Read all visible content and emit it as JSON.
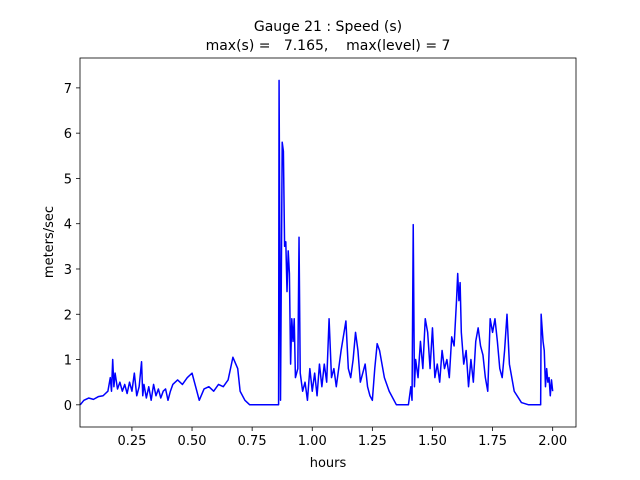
{
  "chart_data": {
    "type": "line",
    "title": "Gauge 21 : Speed (s)",
    "subtitle": "max(s) =   7.165,    max(level) = 7",
    "xlabel": "hours",
    "ylabel": "meters/sec",
    "color": "#0000ff",
    "x": [
      0.035,
      0.05,
      0.07,
      0.09,
      0.11,
      0.13,
      0.15,
      0.16,
      0.165,
      0.17,
      0.175,
      0.18,
      0.19,
      0.2,
      0.21,
      0.22,
      0.23,
      0.24,
      0.25,
      0.26,
      0.27,
      0.28,
      0.29,
      0.295,
      0.3,
      0.31,
      0.32,
      0.33,
      0.34,
      0.35,
      0.36,
      0.37,
      0.38,
      0.39,
      0.4,
      0.41,
      0.42,
      0.44,
      0.46,
      0.48,
      0.5,
      0.52,
      0.53,
      0.55,
      0.57,
      0.59,
      0.61,
      0.63,
      0.65,
      0.67,
      0.69,
      0.7,
      0.72,
      0.74,
      0.86,
      0.862,
      0.868,
      0.875,
      0.88,
      0.885,
      0.89,
      0.895,
      0.9,
      0.905,
      0.91,
      0.915,
      0.92,
      0.925,
      0.93,
      0.94,
      0.945,
      0.95,
      0.96,
      0.97,
      0.98,
      0.99,
      1.0,
      1.01,
      1.02,
      1.03,
      1.04,
      1.05,
      1.06,
      1.07,
      1.08,
      1.09,
      1.1,
      1.12,
      1.14,
      1.15,
      1.16,
      1.17,
      1.18,
      1.19,
      1.2,
      1.22,
      1.23,
      1.24,
      1.25,
      1.26,
      1.27,
      1.28,
      1.29,
      1.3,
      1.32,
      1.35,
      1.4,
      1.41,
      1.415,
      1.42,
      1.425,
      1.43,
      1.44,
      1.45,
      1.46,
      1.47,
      1.48,
      1.49,
      1.5,
      1.51,
      1.52,
      1.53,
      1.54,
      1.55,
      1.56,
      1.57,
      1.58,
      1.59,
      1.6,
      1.605,
      1.61,
      1.615,
      1.62,
      1.63,
      1.64,
      1.65,
      1.66,
      1.67,
      1.68,
      1.69,
      1.7,
      1.71,
      1.72,
      1.73,
      1.74,
      1.75,
      1.76,
      1.77,
      1.78,
      1.79,
      1.8,
      1.81,
      1.82,
      1.84,
      1.87,
      1.9,
      1.95,
      1.952,
      1.96,
      1.965,
      1.97,
      1.975,
      1.98,
      1.985,
      1.99,
      1.995,
      2.0
    ],
    "values": [
      0.0,
      0.1,
      0.15,
      0.12,
      0.18,
      0.2,
      0.3,
      0.6,
      0.3,
      1.0,
      0.4,
      0.7,
      0.35,
      0.5,
      0.3,
      0.45,
      0.25,
      0.5,
      0.3,
      0.7,
      0.2,
      0.4,
      0.95,
      0.2,
      0.45,
      0.15,
      0.4,
      0.1,
      0.45,
      0.2,
      0.35,
      0.15,
      0.3,
      0.35,
      0.1,
      0.3,
      0.45,
      0.55,
      0.45,
      0.6,
      0.7,
      0.3,
      0.1,
      0.35,
      0.4,
      0.3,
      0.45,
      0.4,
      0.55,
      1.05,
      0.8,
      0.3,
      0.1,
      0.0,
      0.0,
      7.165,
      0.1,
      5.8,
      5.6,
      3.5,
      3.6,
      2.5,
      3.4,
      2.9,
      0.9,
      1.9,
      1.4,
      1.9,
      0.6,
      0.8,
      3.7,
      0.7,
      0.3,
      0.5,
      0.1,
      0.8,
      0.3,
      0.7,
      0.2,
      0.9,
      0.4,
      0.9,
      0.5,
      1.9,
      0.6,
      0.8,
      0.4,
      1.2,
      1.85,
      0.8,
      0.6,
      1.0,
      1.6,
      1.2,
      0.5,
      0.9,
      0.4,
      0.2,
      0.1,
      0.8,
      1.35,
      1.2,
      0.9,
      0.6,
      0.3,
      0.0,
      0.0,
      0.4,
      0.1,
      3.98,
      0.4,
      1.0,
      0.6,
      1.4,
      0.8,
      1.9,
      1.6,
      0.8,
      1.7,
      0.6,
      0.9,
      0.5,
      1.2,
      0.8,
      1.0,
      0.6,
      1.5,
      1.3,
      2.3,
      2.9,
      2.3,
      2.7,
      1.6,
      0.9,
      1.2,
      0.4,
      1.0,
      0.5,
      1.4,
      1.7,
      1.3,
      1.1,
      0.6,
      0.3,
      1.9,
      1.6,
      1.9,
      1.4,
      0.8,
      0.6,
      1.2,
      2.0,
      0.9,
      0.3,
      0.05,
      0.0,
      0.0,
      2.0,
      1.4,
      1.2,
      0.4,
      0.8,
      0.5,
      0.6,
      0.2,
      0.55,
      0.3
    ],
    "xlim": [
      0.034,
      2.097
    ],
    "ylim": [
      -0.49,
      7.66
    ],
    "xticks": [
      0.25,
      {
        "value": 0.5,
        "label": "0.50"
      },
      0.75,
      {
        "value": 1.0,
        "label": "1.00"
      },
      1.25,
      {
        "value": 1.5,
        "label": "1.50"
      },
      1.75,
      {
        "value": 2.0,
        "label": "2.00"
      }
    ],
    "yticks": [
      0,
      1,
      2,
      3,
      4,
      5,
      6,
      7
    ],
    "grid": false
  }
}
